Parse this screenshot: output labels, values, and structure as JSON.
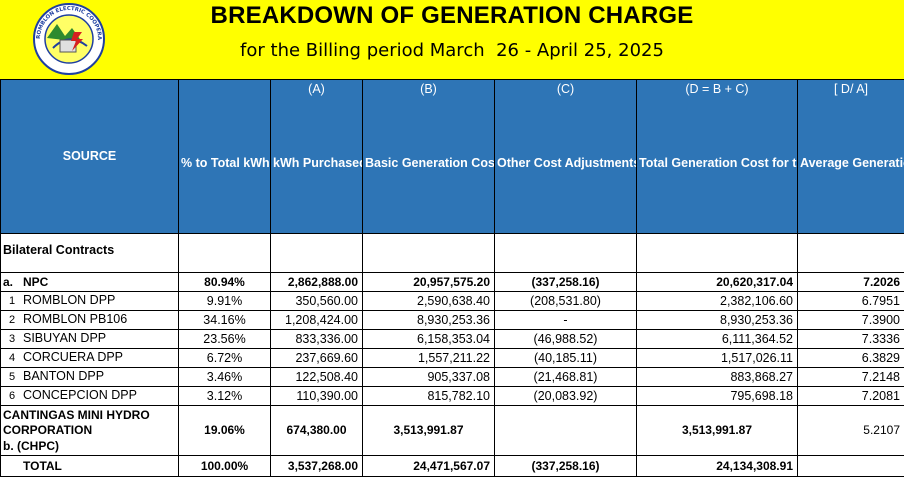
{
  "header": {
    "title": "BREAKDOWN OF GENERATION CHARGE",
    "subtitle": "for the Billing period March  26 - April 25, 2025",
    "logo_text": "ROMBLON ELECTRIC COOPERATIVE, INC."
  },
  "colors": {
    "banner": "#ffff00",
    "header_bg": "#2e75b6",
    "header_text": "#ffffff"
  },
  "table": {
    "columns": [
      {
        "code": "",
        "label": "SOURCE"
      },
      {
        "code": "",
        "label": "% to Total kWh Purchased"
      },
      {
        "code": "(A)",
        "label": "kWh Purchased"
      },
      {
        "code": "(B)",
        "label": "Basic Generation Cost (Php)"
      },
      {
        "code": "(C)",
        "label": "Other Cost Adjustments (DAA, NSS, and other Billing Adjustments) (Php)"
      },
      {
        "code": "(D = B + C)",
        "label": "Total Generation Cost for the Month"
      },
      {
        "code": "[ D/ A]",
        "label": "Average Generation Cost (Php/kWh)"
      }
    ],
    "section_label": "Bilateral Contracts",
    "npc": {
      "letter": "a.",
      "source": "NPC",
      "pct": "80.94%",
      "kwh": "2,862,888.00",
      "basic": "20,957,575.20",
      "other": "(337,258.16)",
      "total": "20,620,317.04",
      "avg": "7.2026"
    },
    "sub_rows": [
      {
        "idx": "1",
        "source": "ROMBLON DPP",
        "pct": "9.91%",
        "kwh": "350,560.00",
        "basic": "2,590,638.40",
        "other": "(208,531.80)",
        "total": "2,382,106.60",
        "avg": "6.7951"
      },
      {
        "idx": "2",
        "source": "ROMBLON PB106",
        "pct": "34.16%",
        "kwh": "1,208,424.00",
        "basic": "8,930,253.36",
        "other": "-",
        "total": "8,930,253.36",
        "avg": "7.3900"
      },
      {
        "idx": "3",
        "source": "SIBUYAN DPP",
        "pct": "23.56%",
        "kwh": "833,336.00",
        "basic": "6,158,353.04",
        "other": "(46,988.52)",
        "total": "6,111,364.52",
        "avg": "7.3336"
      },
      {
        "idx": "4",
        "source": "CORCUERA DPP",
        "pct": "6.72%",
        "kwh": "237,669.60",
        "basic": "1,557,211.22",
        "other": "(40,185.11)",
        "total": "1,517,026.11",
        "avg": "6.3829"
      },
      {
        "idx": "5",
        "source": "BANTON DPP",
        "pct": "3.46%",
        "kwh": "122,508.40",
        "basic": "905,337.08",
        "other": "(21,468.81)",
        "total": "883,868.27",
        "avg": "7.2148"
      },
      {
        "idx": "6",
        "source": "CONCEPCION DPP",
        "pct": "3.12%",
        "kwh": "110,390.00",
        "basic": "815,782.10",
        "other": "(20,083.92)",
        "total": "795,698.18",
        "avg": "7.2081"
      }
    ],
    "chpc": {
      "letter": "b.",
      "source": "CANTINGAS MINI HYDRO CORPORATION",
      "abbr": "(CHPC)",
      "pct": "19.06%",
      "kwh": "674,380.00",
      "basic": "3,513,991.87",
      "other": "",
      "total": "3,513,991.87",
      "avg": "5.2107"
    },
    "total": {
      "source": "TOTAL",
      "pct": "100.00%",
      "kwh": "3,537,268.00",
      "basic": "24,471,567.07",
      "other": "(337,258.16)",
      "total": "24,134,308.91",
      "avg": ""
    }
  }
}
